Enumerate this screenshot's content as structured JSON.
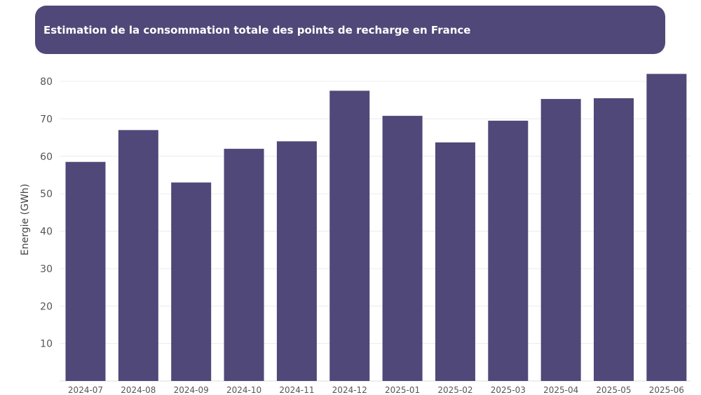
{
  "chart_data": {
    "type": "bar",
    "title": "Estimation de la consommation totale des points de recharge en France",
    "xlabel": "",
    "ylabel": "Energie (GWh)",
    "ylim": [
      0,
      82
    ],
    "yticks": [
      10,
      20,
      30,
      40,
      50,
      60,
      70,
      80
    ],
    "grid": true,
    "categories": [
      "2024-07",
      "2024-08",
      "2024-09",
      "2024-10",
      "2024-11",
      "2024-12",
      "2025-01",
      "2025-02",
      "2025-03",
      "2025-04",
      "2025-05",
      "2025-06"
    ],
    "values": [
      58.5,
      67,
      53,
      62,
      64,
      77.5,
      70.8,
      63.7,
      69.5,
      75.3,
      75.5,
      82
    ],
    "bar_color": "#504878"
  }
}
